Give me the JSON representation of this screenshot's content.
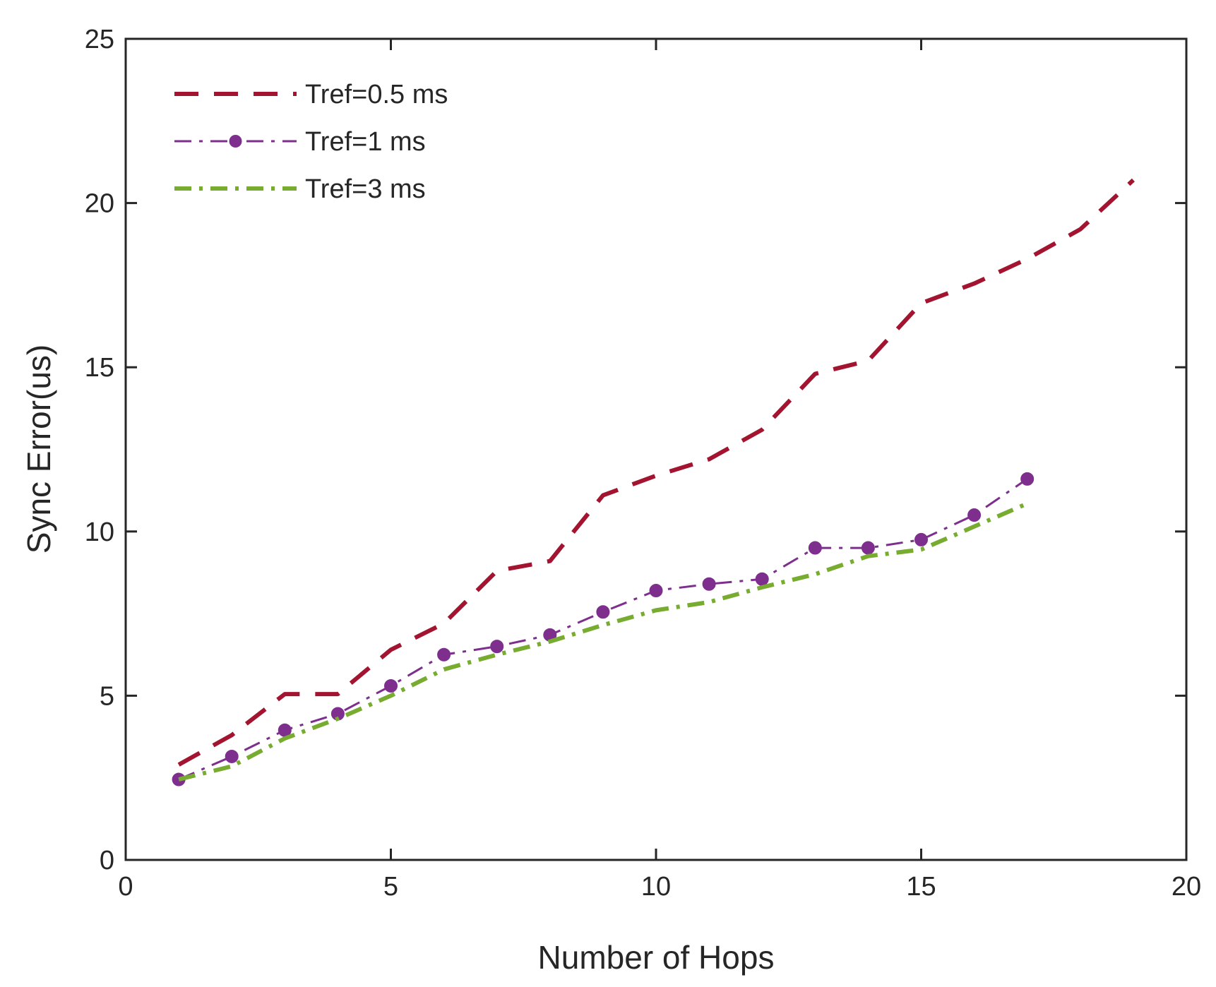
{
  "chart_data": {
    "type": "line",
    "title": "",
    "xlabel": "Number of Hops",
    "ylabel": "Sync Error(us)",
    "xlim": [
      0,
      20
    ],
    "ylim": [
      0,
      25
    ],
    "xticks": [
      0,
      5,
      10,
      15,
      20
    ],
    "yticks": [
      0,
      5,
      10,
      15,
      20,
      25
    ],
    "grid": false,
    "legend_position": "top-left",
    "series": [
      {
        "name": "Tref=0.5 ms",
        "color": "#A2142F",
        "line_style": "dashed",
        "marker": "none",
        "x": [
          1,
          2,
          3,
          4,
          5,
          6,
          7,
          8,
          9,
          10,
          11,
          12,
          13,
          14,
          15,
          16,
          17,
          18,
          19
        ],
        "y": [
          2.9,
          3.8,
          5.05,
          5.05,
          6.4,
          7.2,
          8.8,
          9.1,
          11.1,
          11.7,
          12.2,
          13.1,
          14.8,
          15.2,
          16.95,
          17.55,
          18.3,
          19.2,
          20.7
        ]
      },
      {
        "name": "Tref=1 ms",
        "color": "#7E2F8E",
        "line_style": "dash-dot",
        "marker": "circle",
        "x": [
          1,
          2,
          3,
          4,
          5,
          6,
          7,
          8,
          9,
          10,
          11,
          12,
          13,
          14,
          15,
          16,
          17
        ],
        "y": [
          2.45,
          3.15,
          3.95,
          4.45,
          5.3,
          6.25,
          6.5,
          6.85,
          7.55,
          8.2,
          8.4,
          8.55,
          9.5,
          9.5,
          9.75,
          10.5,
          11.6
        ]
      },
      {
        "name": "Tref=3 ms",
        "color": "#77AC30",
        "line_style": "dash-dot",
        "marker": "none",
        "x": [
          1,
          2,
          3,
          4,
          5,
          6,
          7,
          8,
          9,
          10,
          11,
          12,
          13,
          14,
          15,
          16,
          17
        ],
        "y": [
          2.45,
          2.85,
          3.7,
          4.3,
          5.0,
          5.8,
          6.25,
          6.65,
          7.15,
          7.6,
          7.85,
          8.3,
          8.7,
          9.25,
          9.45,
          10.15,
          10.85
        ]
      }
    ]
  }
}
